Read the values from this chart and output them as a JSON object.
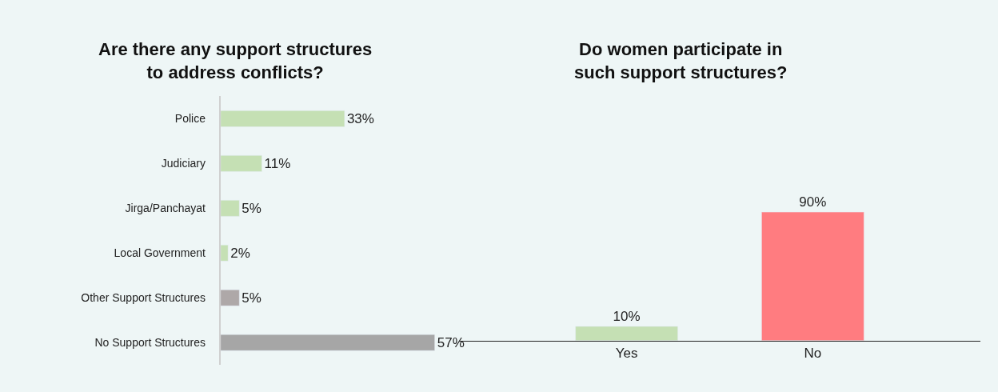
{
  "chart_data": [
    {
      "type": "bar",
      "orientation": "horizontal",
      "title": "Are there any support structures\nto address conflicts?",
      "categories": [
        "Police",
        "Judiciary",
        "Jirga/Panchayat",
        "Local Government",
        "Other Support Structures",
        "No Support Structures"
      ],
      "values": [
        33,
        11,
        5,
        2,
        5,
        57
      ],
      "value_labels": [
        "33%",
        "11%",
        "5%",
        "2%",
        "5%",
        "57%"
      ],
      "colors": [
        "#c5e0b4",
        "#c5e0b4",
        "#c5e0b4",
        "#c5e0b4",
        "#aea8a8",
        "#a6a6a6"
      ],
      "grid": false,
      "legend": false
    },
    {
      "type": "bar",
      "title": "Do women participate in\nsuch support structures?",
      "categories": [
        "Yes",
        "No"
      ],
      "values": [
        10,
        90
      ],
      "value_labels": [
        "10%",
        "90%"
      ],
      "colors": [
        "#c5e0b4",
        "#ff7c80"
      ],
      "grid": false,
      "legend": false
    }
  ]
}
